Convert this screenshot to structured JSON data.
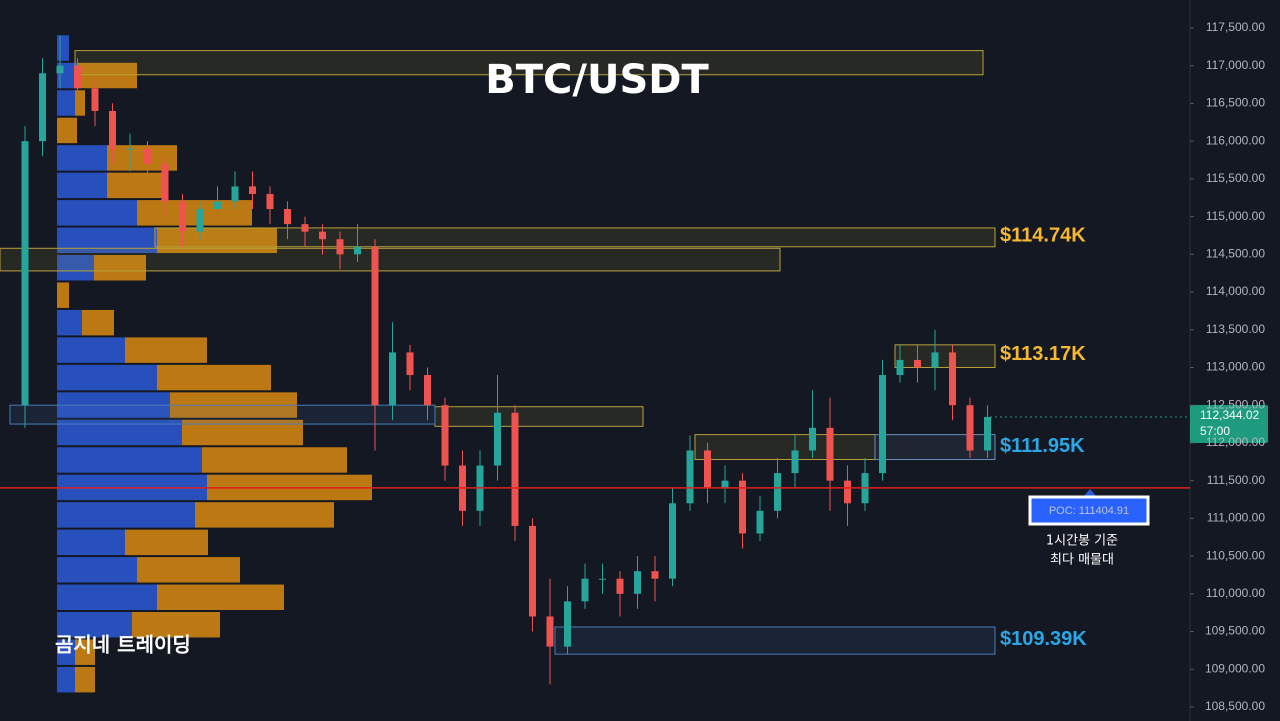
{
  "chart_data": {
    "type": "candlestick",
    "title": "BTC/USDT",
    "watermark": "곰지네 트레이딩",
    "ylim": [
      108314,
      117871
    ],
    "yticks": [
      {
        "value": 108500,
        "label": "108,500.00"
      },
      {
        "value": 109000,
        "label": "109,000.00"
      },
      {
        "value": 109500,
        "label": "109,500.00"
      },
      {
        "value": 110000,
        "label": "110,000.00"
      },
      {
        "value": 110500,
        "label": "110,500.00"
      },
      {
        "value": 111000,
        "label": "111,000.00"
      },
      {
        "value": 111500,
        "label": "111,500.00"
      },
      {
        "value": 112000,
        "label": "112,000.00"
      },
      {
        "value": 112500,
        "label": "112,500.00"
      },
      {
        "value": 113000,
        "label": "113,000.00"
      },
      {
        "value": 113500,
        "label": "113,500.00"
      },
      {
        "value": 114000,
        "label": "114,000.00"
      },
      {
        "value": 114500,
        "label": "114,500.00"
      },
      {
        "value": 115000,
        "label": "115,000.00"
      },
      {
        "value": 115500,
        "label": "115,500.00"
      },
      {
        "value": 116000,
        "label": "116,000.00"
      },
      {
        "value": 116500,
        "label": "116,500.00"
      },
      {
        "value": 117000,
        "label": "117,000.00"
      },
      {
        "value": 117500,
        "label": "117,500.00"
      }
    ],
    "up_color": "#26a69a",
    "down_color": "#ef5350",
    "open": [
      112500,
      116000,
      116900,
      117000,
      116700,
      116400,
      115900,
      115900,
      115700,
      115200,
      114800,
      115100,
      115200,
      115400,
      115300,
      115100,
      114900,
      114800,
      114700,
      114500,
      114600,
      112500,
      113200,
      112900,
      112500,
      111700,
      111100,
      111700,
      112400,
      110900,
      109700,
      109300,
      109900,
      110200,
      110200,
      110000,
      110300,
      110200,
      111200,
      111900,
      111400,
      111500,
      110800,
      111100,
      111600,
      111900,
      112200,
      111500,
      111200,
      111600,
      112900,
      113100,
      113000,
      113200,
      112500,
      111900
    ],
    "high": [
      116200,
      117100,
      117400,
      117100,
      116800,
      116500,
      116100,
      116000,
      115800,
      115300,
      115200,
      115400,
      115600,
      115600,
      115400,
      115200,
      115000,
      114900,
      114800,
      114900,
      114700,
      113600,
      113300,
      113000,
      112600,
      111900,
      111900,
      112900,
      112500,
      111000,
      110200,
      110100,
      110400,
      110400,
      110300,
      110500,
      110500,
      111400,
      112100,
      112000,
      111700,
      111600,
      111300,
      111800,
      112100,
      112700,
      112600,
      111700,
      111800,
      113100,
      113300,
      113300,
      113500,
      113300,
      112600,
      112500
    ],
    "low": [
      112200,
      115800,
      116700,
      116500,
      116200,
      115700,
      115600,
      115400,
      115000,
      114600,
      114700,
      115000,
      115100,
      115100,
      114900,
      114700,
      114600,
      114500,
      114300,
      114400,
      111900,
      112300,
      112700,
      112300,
      111500,
      110900,
      110900,
      111500,
      110700,
      109500,
      108800,
      109200,
      109800,
      110000,
      109700,
      109800,
      109900,
      110100,
      111100,
      111200,
      111200,
      110600,
      110700,
      111000,
      111400,
      111800,
      111100,
      110900,
      111100,
      111500,
      112800,
      112800,
      112700,
      112300,
      111800,
      111800
    ],
    "close": [
      116000,
      116900,
      117000,
      116700,
      116400,
      115900,
      115900,
      115700,
      115200,
      114800,
      115100,
      115200,
      115400,
      115300,
      115100,
      114900,
      114800,
      114700,
      114500,
      114600,
      112500,
      113200,
      112900,
      112500,
      111700,
      111100,
      111700,
      112400,
      110900,
      109700,
      109300,
      109900,
      110200,
      110200,
      110000,
      110300,
      110200,
      111200,
      111900,
      111400,
      111500,
      110800,
      111100,
      111600,
      111900,
      112200,
      111500,
      111200,
      111600,
      112900,
      113100,
      113000,
      113200,
      112500,
      111900,
      112344
    ],
    "profile": {
      "bins": [
        108680,
        109044,
        109408,
        109772,
        110136,
        110500,
        110864,
        111228,
        111592,
        111956,
        112320,
        112684,
        113048,
        113412,
        113776,
        114140,
        114504,
        114868,
        115232,
        115596,
        115960,
        116324,
        116688,
        117052,
        117416
      ],
      "buy": [
        18,
        18,
        75,
        100,
        80,
        68,
        138,
        150,
        145,
        125,
        113,
        100,
        68,
        25,
        0,
        37,
        100,
        80,
        50,
        50,
        0,
        18,
        20,
        12
      ],
      "sell": [
        20,
        20,
        88,
        127,
        103,
        83,
        139,
        165,
        145,
        121,
        127,
        114,
        82,
        32,
        12,
        52,
        120,
        115,
        55,
        70,
        20,
        10,
        60,
        0
      ],
      "buy_color": "#2a5bd8",
      "sell_color": "#d98a0f"
    },
    "zones": [
      {
        "low": 116880,
        "high": 117200,
        "color": "#b8a13a"
      },
      {
        "low": 114600,
        "high": 114850,
        "color": "#b8a13a",
        "value": 114740,
        "label": "$114.74K",
        "label_color": "#f5b82e"
      },
      {
        "low": 114280,
        "high": 114580,
        "color": "#b8a13a"
      },
      {
        "low": 113000,
        "high": 113300,
        "color": "#b8a13a",
        "value": 113170,
        "label": "$113.17K",
        "label_color": "#f5b82e"
      },
      {
        "low": 112220,
        "high": 112480,
        "color": "#b8a13a"
      },
      {
        "low": 112250,
        "high": 112500,
        "color": "#4a7bb8"
      },
      {
        "low": 111780,
        "high": 112110,
        "color": "#b8a13a"
      },
      {
        "low": 111780,
        "high": 112110,
        "color": "#6a8fb8",
        "value": 111950,
        "label": "$111.95K",
        "label_color": "#2aa7e6"
      },
      {
        "low": 109200,
        "high": 109560,
        "color": "#4a7bb8",
        "value": 109390,
        "label": "$109.39K",
        "label_color": "#2aa7e6"
      }
    ],
    "poc": {
      "value": 111404.91,
      "label": "POC: 111404.91",
      "color": "#e0201e",
      "note": [
        "1시간봉 기준",
        "최다 매물대"
      ]
    },
    "current": {
      "value": 112344.02,
      "label": "112,344.02",
      "countdown": "57:00",
      "color": "#1e9b7e"
    }
  }
}
